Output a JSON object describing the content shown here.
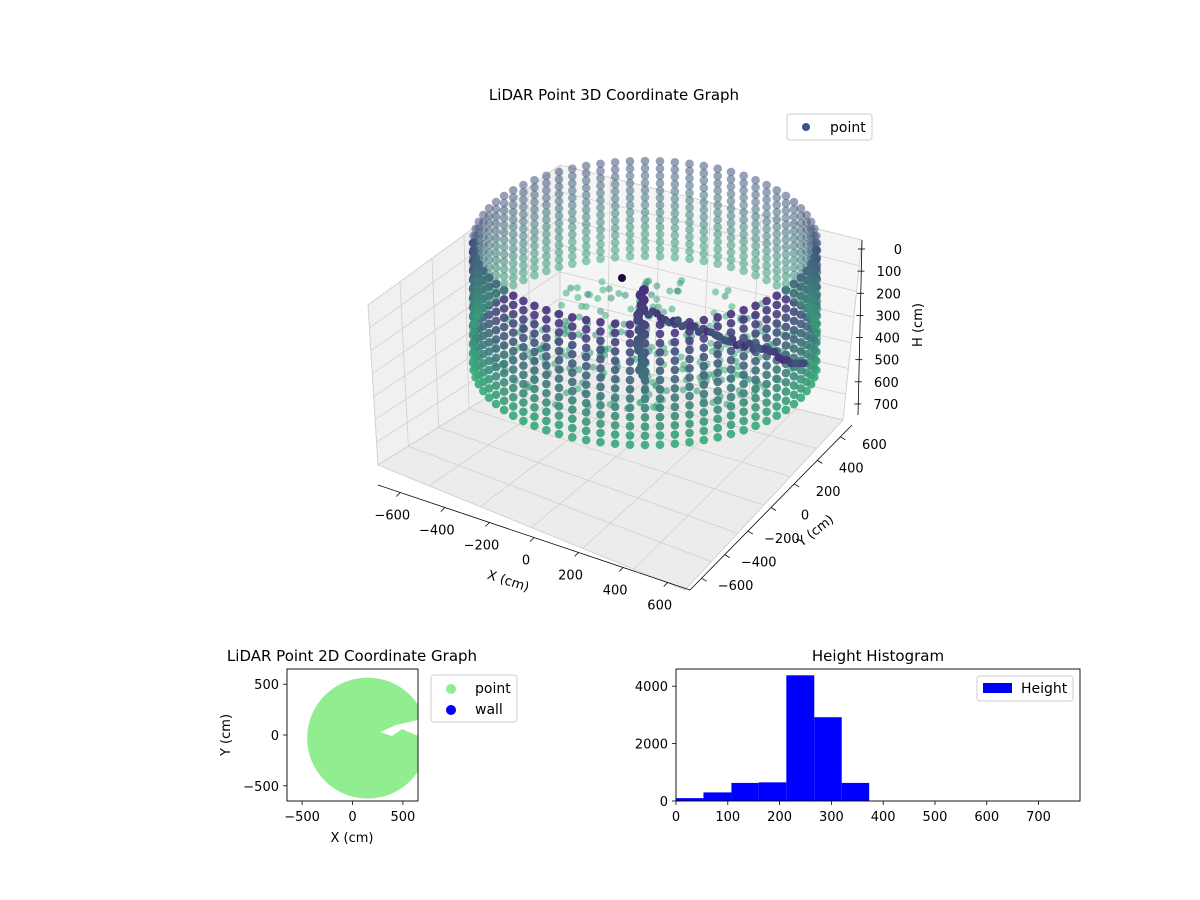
{
  "colors": {
    "point3d": "#3b528b",
    "ring_dark": "#472f7d",
    "ring_light": "#35b779",
    "point2d": "#90ee90",
    "wall": "#0000ff",
    "hist": "#0000ff"
  },
  "chart_data": [
    {
      "type": "scatter",
      "subtype": "3d",
      "title": "LiDAR Point 3D Coordinate Graph",
      "xlabel": "X (cm)",
      "ylabel": "Y (cm)",
      "zlabel": "H (cm)",
      "xticks": [
        "−600",
        "−400",
        "−200",
        "0",
        "200",
        "400",
        "600"
      ],
      "yticks": [
        "−600",
        "−400",
        "−200",
        "0",
        "200",
        "400",
        "600"
      ],
      "zticks": [
        "0",
        "100",
        "200",
        "300",
        "400",
        "500",
        "600",
        "700"
      ],
      "xlim": [
        -650,
        650
      ],
      "ylim": [
        -650,
        650
      ],
      "zlim": [
        0,
        750
      ],
      "z_axis_inverted": true,
      "colormap": "viridis",
      "legend": [
        {
          "label": "point"
        }
      ],
      "legend_position": "upper-right",
      "grid": true
    },
    {
      "type": "scatter",
      "title": "LiDAR Point 2D Coordinate Graph",
      "xlabel": "X (cm)",
      "ylabel": "Y (cm)",
      "xticks": [
        "−500",
        "0",
        "500"
      ],
      "yticks": [
        "500",
        "0",
        "−500"
      ],
      "xlim": [
        -650,
        650
      ],
      "ylim": [
        -650,
        650
      ],
      "legend": [
        {
          "label": "point"
        },
        {
          "label": "wall"
        }
      ],
      "legend_position": "outside-right",
      "point_cloud_extent": {
        "center_x": 150,
        "center_y": -30,
        "radius": 600
      }
    },
    {
      "type": "bar",
      "subtype": "histogram",
      "title": "Height Histogram",
      "xticks": [
        "0",
        "100",
        "200",
        "300",
        "400",
        "500",
        "600",
        "700"
      ],
      "yticks": [
        "0",
        "2000",
        "4000"
      ],
      "xlim": [
        0,
        780
      ],
      "ylim": [
        0,
        4600
      ],
      "legend": [
        {
          "label": "Height"
        }
      ],
      "legend_position": "upper-right",
      "bins": [
        {
          "start": 0,
          "end": 53,
          "count": 100
        },
        {
          "start": 53,
          "end": 107,
          "count": 300
        },
        {
          "start": 107,
          "end": 160,
          "count": 630
        },
        {
          "start": 160,
          "end": 213,
          "count": 650
        },
        {
          "start": 213,
          "end": 267,
          "count": 4380
        },
        {
          "start": 267,
          "end": 320,
          "count": 2920
        },
        {
          "start": 320,
          "end": 373,
          "count": 630
        },
        {
          "start": 373,
          "end": 427,
          "count": 0
        },
        {
          "start": 427,
          "end": 480,
          "count": 0
        },
        {
          "start": 480,
          "end": 533,
          "count": 0
        },
        {
          "start": 533,
          "end": 587,
          "count": 0
        },
        {
          "start": 587,
          "end": 640,
          "count": 0
        },
        {
          "start": 640,
          "end": 693,
          "count": 0
        },
        {
          "start": 693,
          "end": 746,
          "count": 0
        }
      ]
    }
  ]
}
